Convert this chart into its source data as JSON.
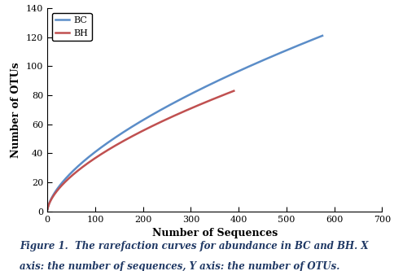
{
  "xlabel": "Number of Sequences",
  "ylabel": "Number of OTUs",
  "xlim": [
    0,
    700
  ],
  "ylim": [
    0,
    140
  ],
  "xticks": [
    0,
    100,
    200,
    300,
    400,
    500,
    600,
    700
  ],
  "yticks": [
    0,
    20,
    40,
    60,
    80,
    100,
    120,
    140
  ],
  "bc_color": "#5B8DC8",
  "bh_color": "#C05050",
  "bc_label": "BC",
  "bh_label": "BH",
  "bc_x_end": 575,
  "bc_y_end": 121,
  "bh_x_end": 390,
  "bh_y_end": 83,
  "caption_line1": "Figure 1.  The rarefaction curves for abundance in BC and BH. X",
  "caption_line2": "axis: the number of sequences, Y axis: the number of OTUs.",
  "caption_color": "#1F3864",
  "background_color": "#FFFFFF",
  "linewidth": 1.8,
  "legend_fontsize": 8,
  "axis_label_fontsize": 9,
  "tick_fontsize": 8,
  "caption_fontsize": 8.5,
  "bc_power": 0.62,
  "bh_power": 0.6
}
